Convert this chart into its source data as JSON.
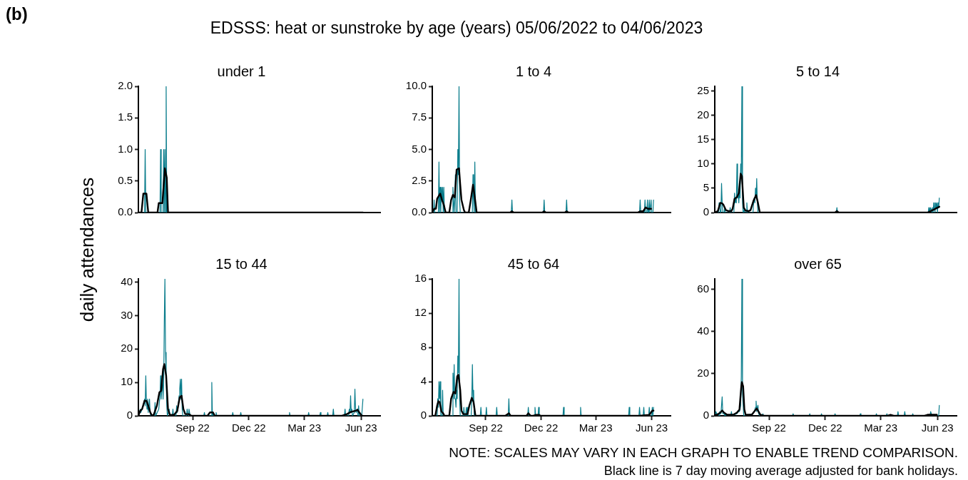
{
  "chart_data": [
    {
      "type": "line",
      "title": "under 1",
      "ylabel": "daily attendances",
      "annotations": [
        "(b)",
        "EDSSS: heat or sunstroke by age (years) 05/06/2022 to 04/06/2023",
        "NOTE: SCALES MAY VARY IN EACH GRAPH TO ENABLE TREND COMPARISON.",
        "Black line is 7 day moving average adjusted for bank holidays."
      ],
      "xlim": [
        "2022-06-05",
        "2023-07-02"
      ],
      "ylim": [
        0,
        2
      ],
      "yticks": [
        {
          "value": 0,
          "label": "0.0"
        },
        {
          "value": 0.5,
          "label": "0.5"
        },
        {
          "value": 1,
          "label": "1.0"
        },
        {
          "value": 1.5,
          "label": "1.5"
        },
        {
          "value": 2,
          "label": "2.0"
        }
      ],
      "tick_labels": "y",
      "series": [
        {
          "color": "#0a7d8c",
          "x": [
            "2022-06-05",
            "2022-06-15",
            "2022-06-16",
            "2022-06-17",
            "2022-07-10",
            "2022-07-11",
            "2022-07-12",
            "2022-07-15",
            "2022-07-16",
            "2022-07-17",
            "2022-07-18",
            "2022-07-19",
            "2022-07-20",
            "2022-07-21",
            "2023-06-04"
          ],
          "values": [
            0,
            0,
            1,
            0,
            0,
            1,
            0,
            0,
            1,
            0,
            1,
            0,
            2,
            0,
            0
          ]
        },
        {
          "color": "#000000",
          "x": [
            "2022-06-05",
            "2022-06-10",
            "2022-06-13",
            "2022-06-18",
            "2022-06-21",
            "2022-07-06",
            "2022-07-08",
            "2022-07-14",
            "2022-07-15",
            "2022-07-18",
            "2022-07-21",
            "2022-07-23",
            "2023-06-04"
          ],
          "values": [
            0,
            0,
            0.3,
            0.3,
            0,
            0,
            0.15,
            0.15,
            0.3,
            0.7,
            0.55,
            0,
            0
          ]
        }
      ]
    },
    {
      "type": "line",
      "title": "1 to 4",
      "xlim": [
        "2022-06-05",
        "2023-07-02"
      ],
      "ylim": [
        0,
        10
      ],
      "yticks": [
        {
          "value": 0,
          "label": "0.0"
        },
        {
          "value": 2.5,
          "label": "2.5"
        },
        {
          "value": 5,
          "label": "5.0"
        },
        {
          "value": 7.5,
          "label": "7.5"
        },
        {
          "value": 10,
          "label": "10.0"
        }
      ],
      "tick_labels": "y",
      "series": [
        {
          "color": "#0a7d8c",
          "x": [
            "2022-06-05",
            "2022-06-07",
            "2022-06-08",
            "2022-06-09",
            "2022-06-15",
            "2022-06-16",
            "2022-06-17",
            "2022-06-18",
            "2022-06-19",
            "2022-06-20",
            "2022-06-21",
            "2022-06-22",
            "2022-06-23",
            "2022-06-24",
            "2022-06-25",
            "2022-07-08",
            "2022-07-09",
            "2022-07-10",
            "2022-07-11",
            "2022-07-12",
            "2022-07-13",
            "2022-07-14",
            "2022-07-16",
            "2022-07-17",
            "2022-07-18",
            "2022-07-19",
            "2022-07-20",
            "2022-07-21",
            "2022-08-10",
            "2022-08-11",
            "2022-08-12",
            "2022-08-13",
            "2022-08-14",
            "2022-08-15",
            "2022-10-13",
            "2022-10-14",
            "2022-10-15",
            "2022-12-05",
            "2022-12-06",
            "2022-12-07",
            "2023-01-11",
            "2023-01-12",
            "2023-01-13",
            "2023-05-12",
            "2023-05-13",
            "2023-05-14",
            "2023-05-20",
            "2023-05-21",
            "2023-05-22",
            "2023-05-24",
            "2023-05-25",
            "2023-05-26",
            "2023-05-27",
            "2023-05-28",
            "2023-05-29",
            "2023-05-30",
            "2023-05-31",
            "2023-06-01",
            "2023-06-03",
            "2023-06-04"
          ],
          "values": [
            0,
            0,
            1,
            0,
            0,
            4,
            0,
            2,
            0,
            2,
            1,
            2,
            0,
            2,
            0,
            0,
            2,
            1,
            0,
            1,
            3,
            0,
            0,
            5,
            3,
            10,
            1,
            0,
            0,
            3,
            1,
            0,
            4,
            0,
            0,
            1,
            0,
            0,
            1,
            0,
            0,
            1,
            0,
            0,
            1,
            0,
            0,
            1,
            0,
            0,
            1,
            0,
            0,
            1,
            0,
            0,
            1,
            0,
            0,
            1
          ]
        },
        {
          "color": "#000000",
          "x": [
            "2022-06-05",
            "2022-06-08",
            "2022-06-11",
            "2022-06-13",
            "2022-06-18",
            "2022-06-21",
            "2022-06-24",
            "2022-06-27",
            "2022-07-03",
            "2022-07-06",
            "2022-07-09",
            "2022-07-12",
            "2022-07-15",
            "2022-07-19",
            "2022-07-21",
            "2022-07-23",
            "2022-07-27",
            "2022-07-29",
            "2022-08-04",
            "2022-08-07",
            "2022-08-11",
            "2022-08-14",
            "2022-08-17",
            "2022-10-11",
            "2022-10-14",
            "2022-10-17",
            "2022-12-03",
            "2022-12-06",
            "2022-12-09",
            "2023-01-09",
            "2023-01-12",
            "2023-01-15",
            "2023-05-09",
            "2023-05-13",
            "2023-05-18",
            "2023-05-22",
            "2023-05-26",
            "2023-05-31"
          ],
          "values": [
            0,
            0.3,
            0.3,
            1.1,
            1.5,
            1,
            0.6,
            0,
            0,
            1,
            1.4,
            1.2,
            3.4,
            3.5,
            2.2,
            1,
            0.2,
            0,
            0,
            0.9,
            2.2,
            1.2,
            0,
            0,
            0.1,
            0,
            0,
            0.1,
            0,
            0,
            0.1,
            0,
            0,
            0.1,
            0.1,
            0.4,
            0.3,
            0.3
          ]
        }
      ]
    },
    {
      "type": "line",
      "title": "5 to 14",
      "xlim": [
        "2022-06-05",
        "2023-07-02"
      ],
      "ylim": [
        0,
        26
      ],
      "yticks": [
        0,
        5,
        10,
        15,
        20,
        25
      ],
      "tick_labels": "y",
      "series": [
        {
          "color": "#0a7d8c",
          "x": [
            "2022-06-05",
            "2022-06-11",
            "2022-06-12",
            "2022-06-13",
            "2022-06-14",
            "2022-06-15",
            "2022-06-16",
            "2022-06-17",
            "2022-06-18",
            "2022-06-20",
            "2022-06-21",
            "2022-06-22",
            "2022-06-29",
            "2022-06-30",
            "2022-07-01",
            "2022-07-06",
            "2022-07-07",
            "2022-07-08",
            "2022-07-09",
            "2022-07-10",
            "2022-07-11",
            "2022-07-12",
            "2022-07-13",
            "2022-07-14",
            "2022-07-15",
            "2022-07-16",
            "2022-07-17",
            "2022-07-18",
            "2022-07-19",
            "2022-07-20",
            "2022-07-21",
            "2022-07-22",
            "2022-07-23",
            "2022-07-24",
            "2022-07-26",
            "2022-07-27",
            "2022-07-28",
            "2022-08-06",
            "2022-08-07",
            "2022-08-08",
            "2022-08-09",
            "2022-08-10",
            "2022-08-11",
            "2022-08-12",
            "2022-08-13",
            "2022-08-14",
            "2022-12-19",
            "2022-12-20",
            "2022-12-21",
            "2023-05-17",
            "2023-05-18",
            "2023-05-19",
            "2023-05-21",
            "2023-05-23",
            "2023-05-24",
            "2023-05-25",
            "2023-05-26",
            "2023-05-27",
            "2023-05-28",
            "2023-05-29",
            "2023-05-30",
            "2023-05-31",
            "2023-06-01",
            "2023-06-02",
            "2023-06-03",
            "2023-06-04"
          ],
          "values": [
            0,
            0,
            2,
            1,
            0,
            0,
            6,
            2,
            0,
            0,
            1,
            0,
            0,
            1,
            0,
            0,
            4,
            2,
            3,
            2,
            10,
            3,
            4,
            2,
            5,
            3,
            10,
            8,
            26,
            2,
            0,
            0,
            1,
            0,
            0,
            2,
            0,
            0,
            2,
            3,
            2,
            5,
            3,
            7,
            2,
            0,
            0,
            1,
            0,
            0,
            1,
            0,
            1,
            0,
            1,
            0,
            2,
            1,
            0,
            2,
            1,
            2,
            0,
            2,
            1,
            3
          ]
        },
        {
          "color": "#000000",
          "x": [
            "2022-06-05",
            "2022-06-10",
            "2022-06-14",
            "2022-06-17",
            "2022-06-19",
            "2022-06-23",
            "2022-06-27",
            "2022-07-02",
            "2022-07-04",
            "2022-07-07",
            "2022-07-11",
            "2022-07-14",
            "2022-07-17",
            "2022-07-19",
            "2022-07-22",
            "2022-07-25",
            "2022-07-30",
            "2022-08-02",
            "2022-08-07",
            "2022-08-11",
            "2022-08-14",
            "2022-08-17",
            "2022-12-17",
            "2022-12-20",
            "2022-12-23",
            "2023-05-16",
            "2023-05-21",
            "2023-05-26",
            "2023-06-04"
          ],
          "values": [
            0,
            0.3,
            2,
            1.9,
            1.6,
            0.5,
            0.3,
            0.3,
            0.8,
            2.8,
            3.2,
            4,
            8,
            7.5,
            1,
            0.4,
            0.3,
            0.5,
            2.5,
            3.6,
            2,
            0,
            0,
            0.3,
            0,
            0,
            0.3,
            0.6,
            1.2
          ]
        }
      ]
    },
    {
      "type": "line",
      "title": "15 to 44",
      "xlim": [
        "2022-06-05",
        "2023-07-02"
      ],
      "ylim": [
        0,
        41
      ],
      "yticks": [
        0,
        10,
        20,
        30,
        40
      ],
      "xticks": [
        {
          "value": "2022-09-01",
          "label": "Sep 22"
        },
        {
          "value": "2022-12-01",
          "label": "Dec 22"
        },
        {
          "value": "2023-03-01",
          "label": "Mar 23"
        },
        {
          "value": "2023-06-01",
          "label": "Jun 23"
        }
      ],
      "series": [
        {
          "color": "#0a7d8c",
          "x": [
            "2022-06-05",
            "2022-06-07",
            "2022-06-08",
            "2022-06-09",
            "2022-06-11",
            "2022-06-13",
            "2022-06-15",
            "2022-06-16",
            "2022-06-17",
            "2022-06-18",
            "2022-06-19",
            "2022-06-20",
            "2022-06-21",
            "2022-06-23",
            "2022-06-24",
            "2022-06-25",
            "2022-07-01",
            "2022-07-02",
            "2022-07-03",
            "2022-07-08",
            "2022-07-10",
            "2022-07-11",
            "2022-07-12",
            "2022-07-13",
            "2022-07-14",
            "2022-07-15",
            "2022-07-16",
            "2022-07-17",
            "2022-07-18",
            "2022-07-19",
            "2022-07-20",
            "2022-07-21",
            "2022-07-22",
            "2022-07-25",
            "2022-07-26",
            "2022-07-30",
            "2022-07-31",
            "2022-08-01",
            "2022-08-05",
            "2022-08-06",
            "2022-08-07",
            "2022-08-08",
            "2022-08-09",
            "2022-08-10",
            "2022-08-11",
            "2022-08-12",
            "2022-08-13",
            "2022-08-14",
            "2022-08-15",
            "2022-08-16",
            "2022-08-22",
            "2022-08-23",
            "2022-08-24",
            "2022-08-25",
            "2022-08-26",
            "2022-08-27",
            "2022-08-28",
            "2022-09-19",
            "2022-09-20",
            "2022-09-21",
            "2022-10-01",
            "2022-10-02",
            "2022-10-03",
            "2022-10-04",
            "2022-10-05",
            "2022-10-08",
            "2022-10-09",
            "2022-10-10",
            "2022-11-04",
            "2022-11-05",
            "2022-11-06",
            "2022-11-17",
            "2022-11-18",
            "2022-11-19",
            "2023-02-04",
            "2023-02-05",
            "2023-02-06",
            "2023-03-07",
            "2023-03-08",
            "2023-03-09",
            "2023-03-26",
            "2023-03-27",
            "2023-03-28",
            "2023-04-07",
            "2023-04-08",
            "2023-04-09",
            "2023-04-16",
            "2023-04-17",
            "2023-04-18",
            "2023-05-05",
            "2023-05-06",
            "2023-05-07",
            "2023-05-11",
            "2023-05-12",
            "2023-05-13",
            "2023-05-14",
            "2023-05-15",
            "2023-05-16",
            "2023-05-17",
            "2023-05-18",
            "2023-05-21",
            "2023-05-22",
            "2023-05-23",
            "2023-05-24",
            "2023-05-26",
            "2023-05-27",
            "2023-05-28",
            "2023-05-29",
            "2023-06-02",
            "2023-06-03",
            "2023-06-04"
          ],
          "values": [
            0,
            1,
            2,
            1,
            2,
            3,
            5,
            3,
            12,
            4,
            2,
            5,
            1,
            5,
            1,
            0,
            0,
            4,
            0,
            2,
            6,
            12,
            5,
            8,
            12,
            5,
            10,
            28,
            41,
            19,
            12,
            3,
            0,
            2,
            0,
            0,
            2,
            0,
            0,
            3,
            1,
            2,
            4,
            6,
            8,
            11,
            5,
            11,
            2,
            0,
            0,
            2,
            1,
            0,
            2,
            1,
            0,
            0,
            1,
            0,
            0,
            10,
            0,
            1,
            0,
            0,
            1,
            0,
            0,
            1,
            0,
            0,
            1,
            0,
            0,
            1,
            0,
            0,
            1,
            0,
            0,
            1,
            0,
            0,
            1,
            0,
            0,
            2,
            0,
            0,
            2,
            0,
            0,
            1,
            2,
            1,
            6,
            1,
            2,
            0,
            1,
            8,
            2,
            1,
            2,
            0,
            3,
            0,
            0,
            0,
            5
          ]
        },
        {
          "color": "#000000",
          "x": [
            "2022-06-05",
            "2022-06-08",
            "2022-06-11",
            "2022-06-15",
            "2022-06-18",
            "2022-06-21",
            "2022-06-24",
            "2022-06-27",
            "2022-06-30",
            "2022-07-05",
            "2022-07-09",
            "2022-07-12",
            "2022-07-15",
            "2022-07-17",
            "2022-07-20",
            "2022-07-23",
            "2022-07-26",
            "2022-08-02",
            "2022-08-07",
            "2022-08-11",
            "2022-08-14",
            "2022-08-17",
            "2022-08-20",
            "2022-08-26",
            "2022-08-30",
            "2022-09-25",
            "2022-09-29",
            "2022-10-04",
            "2022-10-07",
            "2023-05-01",
            "2023-05-09",
            "2023-05-16",
            "2023-05-23",
            "2023-05-26",
            "2023-05-30",
            "2023-06-02",
            "2023-06-04"
          ],
          "values": [
            0,
            1.5,
            2,
            4.5,
            4.5,
            3,
            1.2,
            0,
            0.4,
            3,
            7,
            7.5,
            14,
            15.5,
            12,
            2,
            0.3,
            0.3,
            1.5,
            5.5,
            6,
            2,
            0.5,
            0.5,
            0,
            0,
            1,
            1,
            0,
            0,
            0.5,
            1.2,
            1.5,
            1.8,
            0.8,
            0,
            0
          ]
        }
      ]
    },
    {
      "type": "line",
      "title": "45 to 64",
      "xlim": [
        "2022-06-05",
        "2023-07-02"
      ],
      "ylim": [
        0,
        16
      ],
      "yticks": [
        0,
        4,
        8,
        12,
        16
      ],
      "xticks": [
        {
          "value": "2022-09-01",
          "label": "Sep 22"
        },
        {
          "value": "2022-12-01",
          "label": "Dec 22"
        },
        {
          "value": "2023-03-01",
          "label": "Mar 23"
        },
        {
          "value": "2023-06-01",
          "label": "Jun 23"
        }
      ],
      "series": [
        {
          "color": "#0a7d8c",
          "x": [
            "2022-06-05",
            "2022-06-13",
            "2022-06-14",
            "2022-06-15",
            "2022-06-16",
            "2022-06-17",
            "2022-06-18",
            "2022-06-19",
            "2022-06-21",
            "2022-06-22",
            "2022-06-23",
            "2022-07-08",
            "2022-07-09",
            "2022-07-10",
            "2022-07-11",
            "2022-07-12",
            "2022-07-13",
            "2022-07-14",
            "2022-07-15",
            "2022-07-16",
            "2022-07-17",
            "2022-07-18",
            "2022-07-19",
            "2022-07-20",
            "2022-07-21",
            "2022-07-26",
            "2022-07-27",
            "2022-07-28",
            "2022-07-30",
            "2022-07-31",
            "2022-08-01",
            "2022-08-02",
            "2022-08-03",
            "2022-08-08",
            "2022-08-09",
            "2022-08-10",
            "2022-08-11",
            "2022-08-12",
            "2022-08-13",
            "2022-08-23",
            "2022-08-24",
            "2022-08-25",
            "2022-09-01",
            "2022-09-02",
            "2022-09-03",
            "2022-09-18",
            "2022-09-19",
            "2022-09-20",
            "2022-10-08",
            "2022-10-09",
            "2022-10-10",
            "2022-11-09",
            "2022-11-10",
            "2022-11-11",
            "2022-11-20",
            "2022-11-21",
            "2022-11-22",
            "2022-11-26",
            "2022-11-27",
            "2022-11-28",
            "2023-01-06",
            "2023-01-07",
            "2023-01-08",
            "2023-02-03",
            "2023-02-04",
            "2023-02-05",
            "2023-04-24",
            "2023-04-25",
            "2023-04-26",
            "2023-05-11",
            "2023-05-12",
            "2023-05-13",
            "2023-05-18",
            "2023-05-19",
            "2023-05-20",
            "2023-05-27",
            "2023-05-28",
            "2023-05-29",
            "2023-06-01",
            "2023-06-02",
            "2023-06-03",
            "2023-06-04"
          ],
          "values": [
            0,
            0,
            2,
            1,
            4,
            2,
            4,
            0,
            0,
            3,
            0,
            0,
            5,
            2,
            6,
            2,
            2,
            1,
            3,
            2,
            7,
            5,
            16,
            2,
            0,
            0,
            1,
            0,
            0,
            1,
            0,
            1,
            0,
            0,
            2,
            6,
            2,
            3,
            0,
            0,
            1,
            0,
            0,
            1,
            0,
            0,
            1,
            0,
            0,
            2,
            0,
            0,
            1,
            0,
            0,
            1,
            0,
            0,
            1,
            0,
            0,
            1,
            0,
            0,
            1,
            0,
            0,
            1,
            0,
            0,
            1,
            0,
            0,
            1,
            0,
            0,
            1,
            0,
            0,
            1,
            0,
            1
          ]
        },
        {
          "color": "#000000",
          "x": [
            "2022-06-05",
            "2022-06-10",
            "2022-06-13",
            "2022-06-15",
            "2022-06-17",
            "2022-06-20",
            "2022-06-23",
            "2022-06-25",
            "2022-07-03",
            "2022-07-06",
            "2022-07-10",
            "2022-07-13",
            "2022-07-16",
            "2022-07-18",
            "2022-07-21",
            "2022-07-23",
            "2022-07-26",
            "2022-08-02",
            "2022-08-05",
            "2022-08-09",
            "2022-08-12",
            "2022-08-15",
            "2022-10-03",
            "2022-10-09",
            "2022-10-12",
            "2022-11-07",
            "2022-11-10",
            "2022-11-14",
            "2022-11-18",
            "2022-11-22",
            "2022-11-28",
            "2022-11-30",
            "2023-05-11",
            "2023-05-28",
            "2023-06-02",
            "2023-06-04"
          ],
          "values": [
            0,
            0,
            1.2,
            1.7,
            1.6,
            0.5,
            0.3,
            0,
            0,
            2,
            2.8,
            2.6,
            4.6,
            4.8,
            3,
            0.6,
            0.2,
            0.2,
            1.2,
            2.1,
            1.6,
            0,
            0,
            0.3,
            0,
            0,
            0.3,
            0,
            0,
            0.1,
            0.1,
            0,
            0,
            0.1,
            0.6,
            0.6
          ]
        }
      ]
    },
    {
      "type": "line",
      "title": "over 65",
      "xlim": [
        "2022-06-05",
        "2023-07-02"
      ],
      "ylim": [
        0,
        65
      ],
      "yticks": [
        0,
        20,
        40,
        60
      ],
      "xticks": [
        {
          "value": "2022-09-01",
          "label": "Sep 22"
        },
        {
          "value": "2022-12-01",
          "label": "Dec 22"
        },
        {
          "value": "2023-03-01",
          "label": "Mar 23"
        },
        {
          "value": "2023-06-01",
          "label": "Jun 23"
        }
      ],
      "series": [
        {
          "color": "#0a7d8c",
          "x": [
            "2022-06-05",
            "2022-06-06",
            "2022-06-07",
            "2022-06-08",
            "2022-06-10",
            "2022-06-12",
            "2022-06-13",
            "2022-06-15",
            "2022-06-17",
            "2022-06-18",
            "2022-06-19",
            "2022-06-21",
            "2022-06-22",
            "2022-06-23",
            "2022-07-01",
            "2022-07-02",
            "2022-07-03",
            "2022-07-11",
            "2022-07-13",
            "2022-07-15",
            "2022-07-16",
            "2022-07-17",
            "2022-07-18",
            "2022-07-19",
            "2022-07-20",
            "2022-07-21",
            "2022-07-22",
            "2022-08-06",
            "2022-08-08",
            "2022-08-09",
            "2022-08-10",
            "2022-08-11",
            "2022-08-12",
            "2022-08-13",
            "2022-08-14",
            "2022-08-15",
            "2022-08-17",
            "2022-08-21",
            "2022-08-22",
            "2022-08-23",
            "2022-10-09",
            "2022-10-10",
            "2022-10-11",
            "2022-11-05",
            "2022-11-06",
            "2022-11-07",
            "2022-11-24",
            "2022-11-25",
            "2022-11-26",
            "2022-12-16",
            "2022-12-17",
            "2022-12-18",
            "2023-01-26",
            "2023-01-27",
            "2023-01-28",
            "2023-02-21",
            "2023-02-22",
            "2023-02-23",
            "2023-03-10",
            "2023-03-11",
            "2023-03-12",
            "2023-03-28",
            "2023-03-29",
            "2023-03-30",
            "2023-04-08",
            "2023-04-09",
            "2023-04-10",
            "2023-04-21",
            "2023-04-22",
            "2023-04-23",
            "2023-05-20",
            "2023-05-21",
            "2023-05-22",
            "2023-05-23",
            "2023-06-03",
            "2023-06-04"
          ],
          "values": [
            1,
            0,
            2,
            1,
            1,
            0,
            2,
            1,
            9,
            1,
            2,
            0,
            1,
            0,
            0,
            2,
            0,
            1,
            2,
            2,
            3,
            5,
            19,
            65,
            10,
            5,
            0,
            1,
            2,
            3,
            4,
            7,
            2,
            4,
            5,
            1,
            0,
            0,
            1,
            0,
            0,
            1,
            0,
            0,
            1,
            0,
            0,
            1,
            0,
            0,
            1,
            0,
            0,
            1,
            0,
            0,
            1,
            0,
            0,
            1,
            0,
            0,
            2,
            0,
            0,
            2,
            0,
            0,
            1,
            0,
            0,
            2,
            1,
            0,
            0,
            5
          ]
        },
        {
          "color": "#000000",
          "x": [
            "2022-06-05",
            "2022-06-09",
            "2022-06-14",
            "2022-06-17",
            "2022-06-20",
            "2022-06-25",
            "2022-07-05",
            "2022-07-11",
            "2022-07-15",
            "2022-07-18",
            "2022-07-19",
            "2022-07-21",
            "2022-07-23",
            "2022-07-25",
            "2022-08-04",
            "2022-08-08",
            "2022-08-12",
            "2022-08-15",
            "2022-08-18",
            "2022-08-24",
            "2023-03-12",
            "2023-03-17",
            "2023-03-22",
            "2023-05-11",
            "2023-05-16",
            "2023-05-26",
            "2023-05-31"
          ],
          "values": [
            0.5,
            0.5,
            1.5,
            2.5,
            1.5,
            0.5,
            0.5,
            1.5,
            3,
            14,
            16,
            14,
            3,
            0.5,
            0.5,
            2,
            3.5,
            2,
            0.5,
            0,
            0,
            0.5,
            0,
            0,
            0.5,
            0.5,
            0.5
          ]
        }
      ]
    }
  ]
}
